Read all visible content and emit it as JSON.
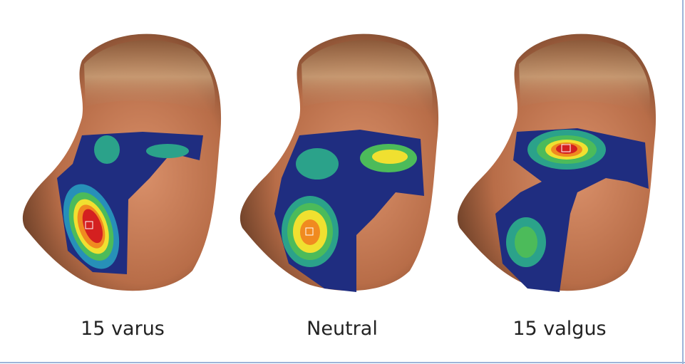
{
  "panels": [
    {
      "label": "15 varus"
    },
    {
      "label": "Neutral"
    },
    {
      "label": "15 valgus"
    }
  ]
}
